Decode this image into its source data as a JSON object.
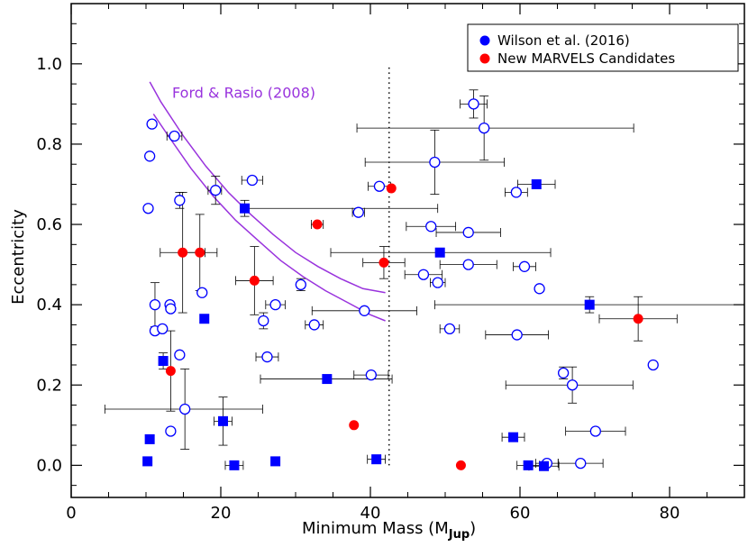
{
  "chart_data": {
    "type": "scatter",
    "xlabel": "Minimum Mass (M",
    "xlabel_sub": "Jup",
    "xlabel_close": ")",
    "ylabel": "Eccentricity",
    "xlim": [
      0,
      90
    ],
    "ylim": [
      -0.08,
      1.15
    ],
    "xticks": [
      0,
      20,
      40,
      60,
      80
    ],
    "yticks": [
      0.0,
      0.2,
      0.4,
      0.6,
      0.8,
      1.0
    ],
    "ytick_labels": [
      "0.0",
      "0.2",
      "0.4",
      "0.6",
      "0.8",
      "1.0"
    ],
    "legend": {
      "position": "top-right",
      "entries": [
        {
          "label": "Wilson et al. (2016)",
          "color": "#0000ff"
        },
        {
          "label": "New MARVELS Candidates",
          "color": "#ff0000"
        }
      ]
    },
    "annotation": {
      "text": "Ford & Rasio (2008)",
      "color": "#9933dd",
      "x": 13.5,
      "y": 0.915
    },
    "vline": {
      "x": 42.5,
      "y_from": 0.0,
      "y_to": 1.0,
      "style": "dotted"
    },
    "curves": [
      {
        "name": "upper",
        "color": "#9933dd",
        "points": [
          [
            10.5,
            0.955
          ],
          [
            12,
            0.905
          ],
          [
            15,
            0.82
          ],
          [
            18,
            0.745
          ],
          [
            21,
            0.68
          ],
          [
            24,
            0.625
          ],
          [
            27,
            0.575
          ],
          [
            30,
            0.53
          ],
          [
            33,
            0.495
          ],
          [
            36,
            0.465
          ],
          [
            39,
            0.44
          ],
          [
            42,
            0.43
          ]
        ]
      },
      {
        "name": "lower",
        "color": "#9933dd",
        "points": [
          [
            11,
            0.875
          ],
          [
            13,
            0.82
          ],
          [
            16,
            0.74
          ],
          [
            19,
            0.67
          ],
          [
            22,
            0.61
          ],
          [
            25,
            0.56
          ],
          [
            28,
            0.51
          ],
          [
            31,
            0.47
          ],
          [
            34,
            0.435
          ],
          [
            37,
            0.405
          ],
          [
            40,
            0.375
          ],
          [
            42,
            0.36
          ]
        ]
      }
    ],
    "series": [
      {
        "name": "Wilson et al. (2016)",
        "marker": "open-circle",
        "color": "#0000ff",
        "points": [
          {
            "x": 10.8,
            "y": 0.85
          },
          {
            "x": 10.5,
            "y": 0.77
          },
          {
            "x": 10.3,
            "y": 0.64
          },
          {
            "x": 13.8,
            "y": 0.82,
            "xerr": [
              1,
              1
            ]
          },
          {
            "x": 14.5,
            "y": 0.66,
            "yerr": 0.02
          },
          {
            "x": 11.2,
            "y": 0.4,
            "yerr": 0.055
          },
          {
            "x": 11.2,
            "y": 0.335
          },
          {
            "x": 12.2,
            "y": 0.34
          },
          {
            "x": 13.2,
            "y": 0.4
          },
          {
            "x": 13.3,
            "y": 0.39
          },
          {
            "x": 14.5,
            "y": 0.275
          },
          {
            "x": 17.5,
            "y": 0.43
          },
          {
            "x": 13.3,
            "y": 0.085
          },
          {
            "x": 15.2,
            "y": 0.14,
            "xerr": [
              10.7,
              10.4
            ],
            "yerr": 0.1
          },
          {
            "x": 19.3,
            "y": 0.685,
            "yerr": 0.035,
            "xerr": [
              1,
              0.8
            ]
          },
          {
            "x": 24.2,
            "y": 0.71,
            "xerr": [
              1.4,
              1.4
            ]
          },
          {
            "x": 27.3,
            "y": 0.4,
            "xerr": [
              1.3,
              1.3
            ]
          },
          {
            "x": 25.7,
            "y": 0.36,
            "yerr": 0.02
          },
          {
            "x": 26.2,
            "y": 0.27,
            "xerr": [
              1.5,
              1.5
            ]
          },
          {
            "x": 30.7,
            "y": 0.45,
            "yerr": 0.015
          },
          {
            "x": 32.5,
            "y": 0.35,
            "xerr": [
              1.2,
              1.2
            ]
          },
          {
            "x": 38.4,
            "y": 0.63,
            "xerr": [
              0.8,
              0.8
            ]
          },
          {
            "x": 39.2,
            "y": 0.385,
            "xerr": [
              7,
              7
            ]
          },
          {
            "x": 40.1,
            "y": 0.225,
            "xerr": [
              2.3,
              2.3
            ]
          },
          {
            "x": 41.2,
            "y": 0.695,
            "xerr": [
              1.5,
              1.5
            ]
          },
          {
            "x": 48.6,
            "y": 0.755,
            "xerr": [
              9.3,
              9.3
            ],
            "yerr": 0.08
          },
          {
            "x": 53.8,
            "y": 0.9,
            "xerr": [
              1.8,
              1.8
            ],
            "yerr": 0.035
          },
          {
            "x": 55.2,
            "y": 0.84,
            "xerr": [
              17,
              20
            ],
            "yerr": 0.08
          },
          {
            "x": 48.1,
            "y": 0.595,
            "xerr": [
              3.3,
              3.3
            ]
          },
          {
            "x": 53.1,
            "y": 0.58,
            "xerr": [
              4.3,
              4.3
            ]
          },
          {
            "x": 47.1,
            "y": 0.475,
            "xerr": [
              2.5,
              2.5
            ]
          },
          {
            "x": 49.0,
            "y": 0.455,
            "xerr": [
              1,
              1
            ]
          },
          {
            "x": 53.1,
            "y": 0.5,
            "xerr": [
              3.8,
              3.8
            ]
          },
          {
            "x": 50.6,
            "y": 0.34,
            "xerr": [
              1.3,
              1.3
            ]
          },
          {
            "x": 59.5,
            "y": 0.68,
            "xerr": [
              1.5,
              1.5
            ]
          },
          {
            "x": 60.6,
            "y": 0.495,
            "xerr": [
              1.5,
              1.5
            ]
          },
          {
            "x": 62.6,
            "y": 0.44
          },
          {
            "x": 59.6,
            "y": 0.325,
            "xerr": [
              4.2,
              4.2
            ]
          },
          {
            "x": 65.8,
            "y": 0.23,
            "yerr": 0.015
          },
          {
            "x": 67.0,
            "y": 0.2,
            "xerr": [
              8.9,
              8.1
            ],
            "yerr": 0.045
          },
          {
            "x": 70.1,
            "y": 0.085,
            "xerr": [
              4,
              4
            ]
          },
          {
            "x": 77.8,
            "y": 0.25
          },
          {
            "x": 63.6,
            "y": 0.005,
            "xerr": [
              1.5,
              1.5
            ]
          },
          {
            "x": 68.1,
            "y": 0.005,
            "xerr": [
              3,
              3
            ]
          }
        ]
      },
      {
        "name": "Wilson et al. (2016)",
        "marker": "filled-square",
        "color": "#0000ff",
        "points": [
          {
            "x": 10.5,
            "y": 0.065
          },
          {
            "x": 10.2,
            "y": 0.01
          },
          {
            "x": 12.3,
            "y": 0.26,
            "yerr": 0.02
          },
          {
            "x": 17.8,
            "y": 0.365
          },
          {
            "x": 20.3,
            "y": 0.11,
            "xerr": [
              1.2,
              1.2
            ],
            "yerr": 0.06
          },
          {
            "x": 21.8,
            "y": 0.0,
            "xerr": [
              1.2,
              1.2
            ]
          },
          {
            "x": 23.2,
            "y": 0.64,
            "xerr": [
              0,
              25.8
            ],
            "yerr": 0.02
          },
          {
            "x": 27.3,
            "y": 0.01
          },
          {
            "x": 34.2,
            "y": 0.215,
            "xerr": [
              8.9,
              8.7
            ]
          },
          {
            "x": 40.8,
            "y": 0.015,
            "xerr": [
              1.2,
              1.2
            ]
          },
          {
            "x": 49.3,
            "y": 0.53,
            "xerr": [
              14.6,
              14.8
            ]
          },
          {
            "x": 59.1,
            "y": 0.07,
            "xerr": [
              1.5,
              1.5
            ]
          },
          {
            "x": 61.1,
            "y": 0.0,
            "xerr": [
              1.5,
              1.5
            ]
          },
          {
            "x": 62.2,
            "y": 0.7,
            "xerr": [
              2.5,
              2.5
            ]
          },
          {
            "x": 63.2,
            "y": -0.002,
            "xerr": [
              2,
              2
            ]
          },
          {
            "x": 69.3,
            "y": 0.4,
            "xerr": [
              20.7,
              20.7
            ],
            "yerr": 0.02
          }
        ]
      },
      {
        "name": "New MARVELS Candidates",
        "marker": "filled-circle",
        "color": "#ff0000",
        "points": [
          {
            "x": 14.9,
            "y": 0.53,
            "xerr": [
              3,
              3
            ],
            "yerr": 0.15
          },
          {
            "x": 17.2,
            "y": 0.53,
            "xerr": [
              2.3,
              2.3
            ],
            "yerr": 0.095
          },
          {
            "x": 13.3,
            "y": 0.235,
            "yerr": 0.1
          },
          {
            "x": 24.5,
            "y": 0.46,
            "xerr": [
              2.5,
              2.5
            ],
            "yerr": 0.085
          },
          {
            "x": 32.9,
            "y": 0.6,
            "xerr": [
              0.8,
              0.8
            ]
          },
          {
            "x": 37.8,
            "y": 0.1
          },
          {
            "x": 41.8,
            "y": 0.505,
            "xerr": [
              2.8,
              2.8
            ],
            "yerr": 0.04
          },
          {
            "x": 42.8,
            "y": 0.69
          },
          {
            "x": 52.1,
            "y": 0.0
          },
          {
            "x": 75.8,
            "y": 0.365,
            "xerr": [
              5.2,
              5.2
            ],
            "yerr": 0.055
          }
        ]
      }
    ]
  }
}
